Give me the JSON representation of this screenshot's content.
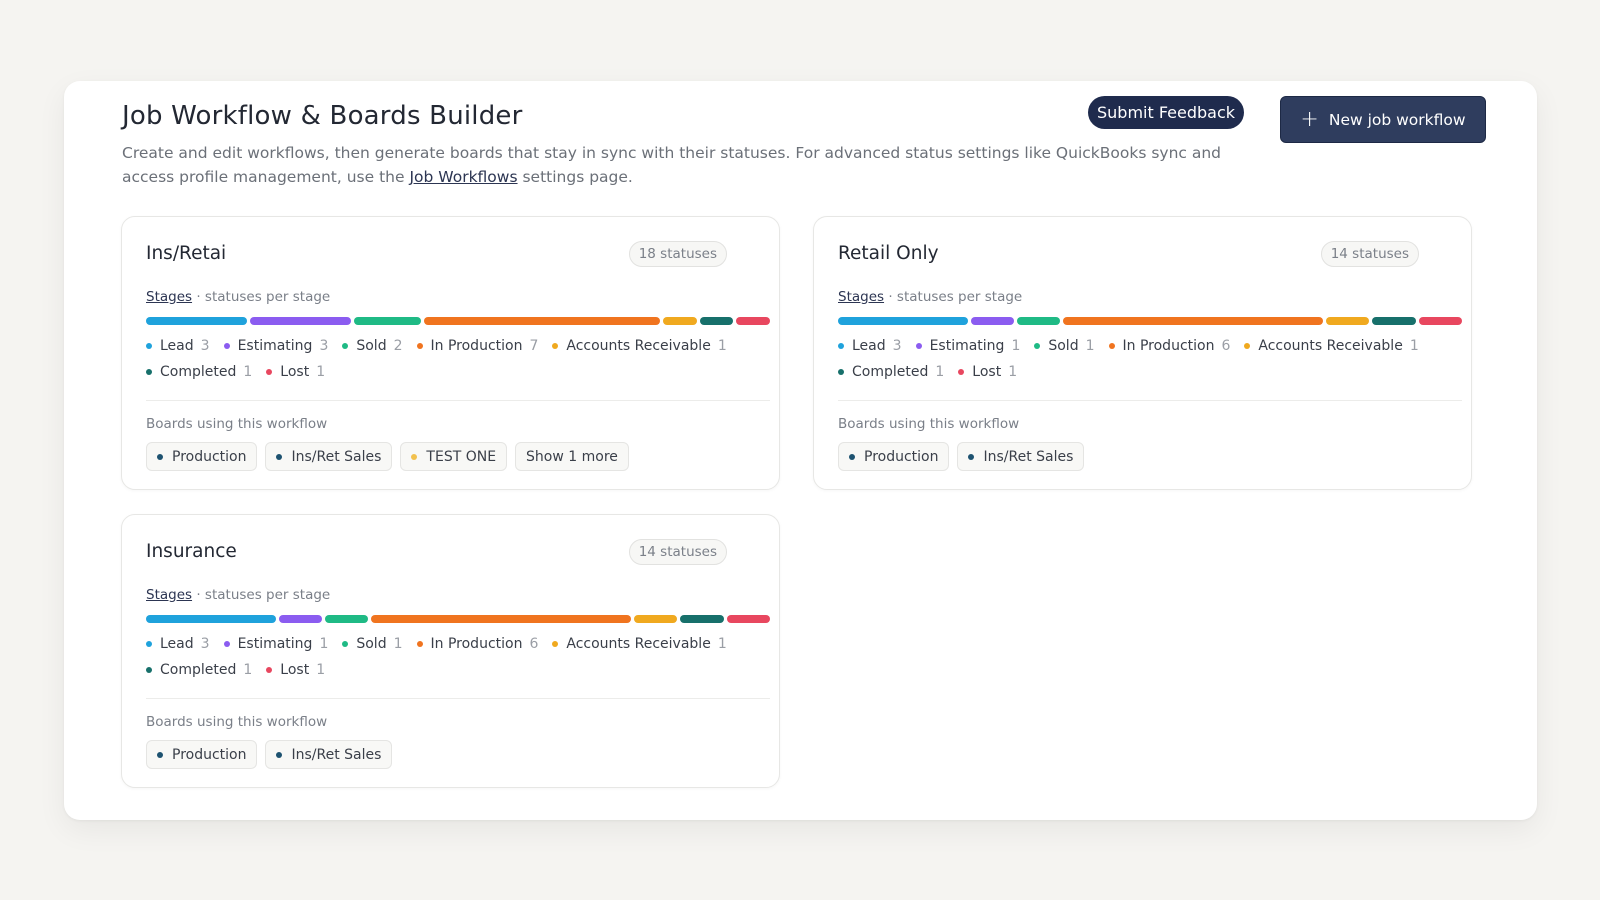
{
  "header": {
    "title": "Job Workflow & Boards Builder",
    "desc_prefix": "Create and edit workflows, then generate boards that stay in sync with their statuses. For advanced status settings like QuickBooks sync and access profile management, use the",
    "desc_link": "Job Workflows",
    "desc_suffix": "settings page.",
    "feedback_label": "Submit Feedback",
    "new_label": "New job workflow",
    "new_icon": "plus-icon"
  },
  "colors": {
    "lead": "#1fa2dc",
    "estimating": "#8b5cf0",
    "sold": "#1fba85",
    "in_production": "#f0741f",
    "accounts_receivable": "#f0a91f",
    "completed": "#17706b",
    "lost": "#e8475f",
    "production_board": "#1d5270",
    "ins_ret_sales_board": "#1d5270",
    "test_one_board": "#f2c14e"
  },
  "labels": {
    "stages_link": "Stages",
    "stages_suffix": "· statuses per stage",
    "boards_heading": "Boards using this workflow"
  },
  "workflows": [
    {
      "name": "Ins/Retai",
      "status_count": "18 statuses",
      "stages": [
        {
          "name": "Lead",
          "count": "3",
          "color": "#1fa2dc"
        },
        {
          "name": "Estimating",
          "count": "3",
          "color": "#8b5cf0"
        },
        {
          "name": "Sold",
          "count": "2",
          "color": "#1fba85"
        },
        {
          "name": "In Production",
          "count": "7",
          "color": "#f0741f"
        },
        {
          "name": "Accounts Receivable",
          "count": "1",
          "color": "#f0a91f"
        },
        {
          "name": "Completed",
          "count": "1",
          "color": "#17706b"
        },
        {
          "name": "Lost",
          "count": "1",
          "color": "#e8475f"
        }
      ],
      "boards": [
        {
          "name": "Production",
          "color": "#1d5270"
        },
        {
          "name": "Ins/Ret Sales",
          "color": "#1d5270"
        },
        {
          "name": "TEST ONE",
          "color": "#f2c14e"
        }
      ],
      "show_more": "Show 1 more"
    },
    {
      "name": "Retail Only",
      "status_count": "14 statuses",
      "stages": [
        {
          "name": "Lead",
          "count": "3",
          "color": "#1fa2dc"
        },
        {
          "name": "Estimating",
          "count": "1",
          "color": "#8b5cf0"
        },
        {
          "name": "Sold",
          "count": "1",
          "color": "#1fba85"
        },
        {
          "name": "In Production",
          "count": "6",
          "color": "#f0741f"
        },
        {
          "name": "Accounts Receivable",
          "count": "1",
          "color": "#f0a91f"
        },
        {
          "name": "Completed",
          "count": "1",
          "color": "#17706b"
        },
        {
          "name": "Lost",
          "count": "1",
          "color": "#e8475f"
        }
      ],
      "boards": [
        {
          "name": "Production",
          "color": "#1d5270"
        },
        {
          "name": "Ins/Ret Sales",
          "color": "#1d5270"
        }
      ],
      "show_more": ""
    },
    {
      "name": "Insurance",
      "status_count": "14 statuses",
      "stages": [
        {
          "name": "Lead",
          "count": "3",
          "color": "#1fa2dc"
        },
        {
          "name": "Estimating",
          "count": "1",
          "color": "#8b5cf0"
        },
        {
          "name": "Sold",
          "count": "1",
          "color": "#1fba85"
        },
        {
          "name": "In Production",
          "count": "6",
          "color": "#f0741f"
        },
        {
          "name": "Accounts Receivable",
          "count": "1",
          "color": "#f0a91f"
        },
        {
          "name": "Completed",
          "count": "1",
          "color": "#17706b"
        },
        {
          "name": "Lost",
          "count": "1",
          "color": "#e8475f"
        }
      ],
      "boards": [
        {
          "name": "Production",
          "color": "#1d5270"
        },
        {
          "name": "Ins/Ret Sales",
          "color": "#1d5270"
        }
      ],
      "show_more": ""
    }
  ]
}
